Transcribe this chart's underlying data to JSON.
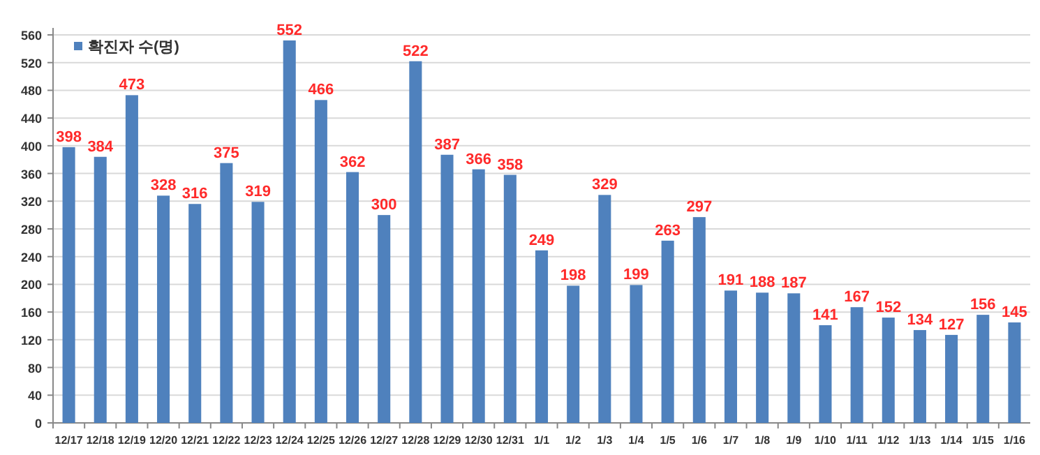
{
  "chart_data": {
    "type": "bar",
    "categories": [
      "12/17",
      "12/18",
      "12/19",
      "12/20",
      "12/21",
      "12/22",
      "12/23",
      "12/24",
      "12/25",
      "12/26",
      "12/27",
      "12/28",
      "12/29",
      "12/30",
      "12/31",
      "1/1",
      "1/2",
      "1/3",
      "1/4",
      "1/5",
      "1/6",
      "1/7",
      "1/8",
      "1/9",
      "1/10",
      "1/11",
      "1/12",
      "1/13",
      "1/14",
      "1/15",
      "1/16"
    ],
    "series": [
      {
        "name": "확진자 수(명)",
        "color": "#4f81bd",
        "values": [
          398,
          384,
          473,
          328,
          316,
          375,
          319,
          552,
          466,
          362,
          300,
          522,
          387,
          366,
          358,
          249,
          198,
          329,
          199,
          263,
          297,
          191,
          188,
          187,
          141,
          167,
          152,
          134,
          127,
          156,
          145
        ]
      }
    ],
    "ylim": [
      0,
      560
    ],
    "yticks": [
      0,
      40,
      80,
      120,
      160,
      200,
      240,
      280,
      320,
      360,
      400,
      440,
      480,
      520,
      560
    ],
    "grid": "y",
    "legend": "top left",
    "data_labels": true
  }
}
